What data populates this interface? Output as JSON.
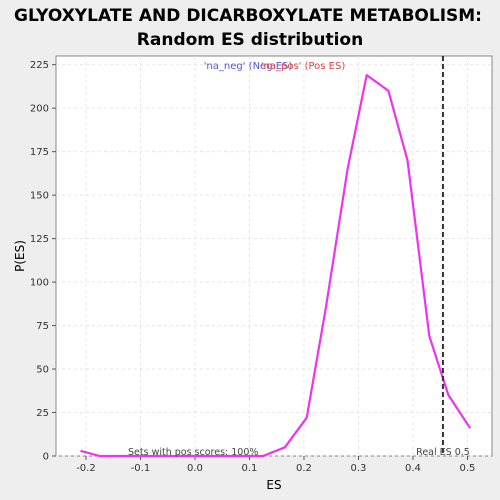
{
  "chart_data": {
    "type": "line",
    "title_line1": "GLYOXYLATE AND DICARBOXYLATE METABOLISM:",
    "title_line2": "Random ES distribution",
    "xlabel": "ES",
    "ylabel": "P(ES)",
    "xlim": [
      -0.255,
      0.545
    ],
    "ylim": [
      0,
      230
    ],
    "xticks": [
      -0.2,
      -0.1,
      0.0,
      0.1,
      0.2,
      0.3,
      0.4,
      0.5
    ],
    "xtick_labels": [
      "-0.2",
      "-0.1",
      "0.0",
      "0.1",
      "0.2",
      "0.3",
      "0.4",
      "0.5"
    ],
    "yticks": [
      0,
      25,
      50,
      75,
      100,
      125,
      150,
      175,
      200,
      225
    ],
    "ytick_labels": [
      "0",
      "25",
      "50",
      "75",
      "100",
      "125",
      "150",
      "175",
      "200",
      "225"
    ],
    "grid": true,
    "legend": [
      {
        "name": "'na_neg' (Neg ES)",
        "color": "#5555dd"
      },
      {
        "name": "'na_pos' (Pos ES)",
        "color": "#dd4444"
      }
    ],
    "series": [
      {
        "name": "'na_pos' (Pos ES)",
        "color": "#ee33ee",
        "x": [
          -0.21,
          -0.175,
          -0.135,
          -0.095,
          0.125,
          0.165,
          0.205,
          0.24,
          0.28,
          0.315,
          0.355,
          0.39,
          0.43,
          0.465,
          0.505
        ],
        "y": [
          3,
          0,
          0,
          0,
          0,
          5,
          22,
          85,
          165,
          219,
          210,
          170,
          69,
          35,
          16
        ]
      }
    ],
    "real_es": {
      "value": 0.455,
      "label": "Real ES 0.5",
      "color": "#333333"
    },
    "annotation": "Sets with pos scores: 100%"
  }
}
